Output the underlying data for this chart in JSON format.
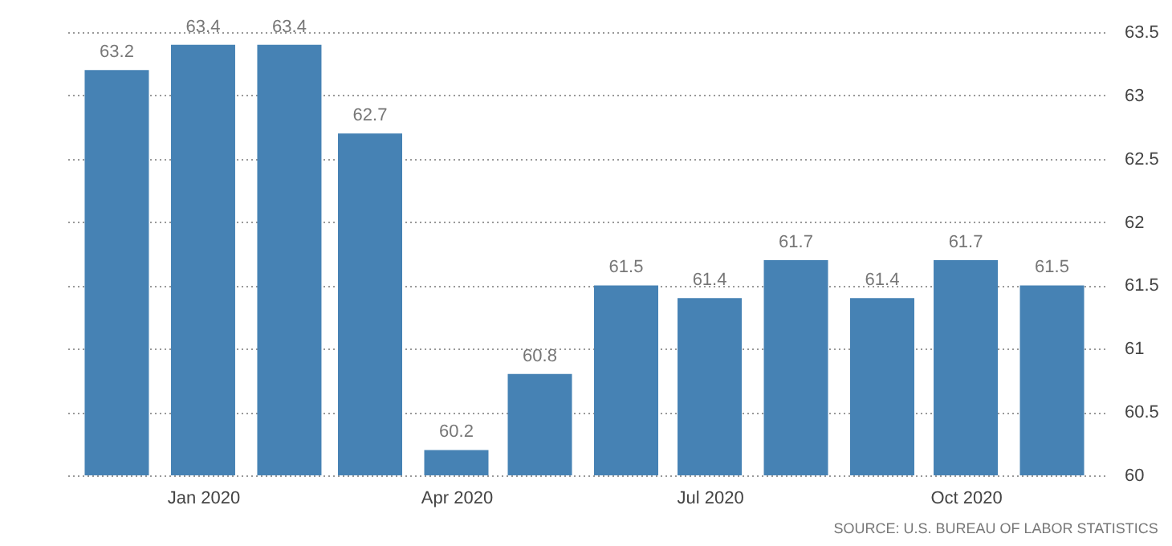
{
  "chart_data": {
    "type": "bar",
    "x": [
      "2019-12",
      "2020-01",
      "2020-02",
      "2020-03",
      "2020-04",
      "2020-05",
      "2020-06",
      "2020-07",
      "2020-08",
      "2020-09",
      "2020-10",
      "2020-11"
    ],
    "values": [
      63.2,
      63.4,
      63.4,
      62.7,
      60.2,
      60.8,
      61.5,
      61.4,
      61.7,
      61.4,
      61.7,
      61.5
    ],
    "color": "#4682b4",
    "data_labels": true,
    "ylim": [
      60,
      63.5
    ],
    "yticks": [
      60,
      60.5,
      61,
      61.5,
      62,
      62.5,
      63,
      63.5
    ],
    "xlim": [
      "2019-11-15",
      "2020-11-17"
    ],
    "xticks": [
      {
        "value": "2020-01",
        "label": "Jan 2020"
      },
      {
        "value": "2020-04",
        "label": "Apr 2020"
      },
      {
        "value": "2020-07",
        "label": "Jul 2020"
      },
      {
        "value": "2020-10",
        "label": "Oct 2020"
      }
    ],
    "grid": "y",
    "annotations": [
      "SOURCE: U.S. BUREAU OF LABOR STATISTICS"
    ]
  }
}
